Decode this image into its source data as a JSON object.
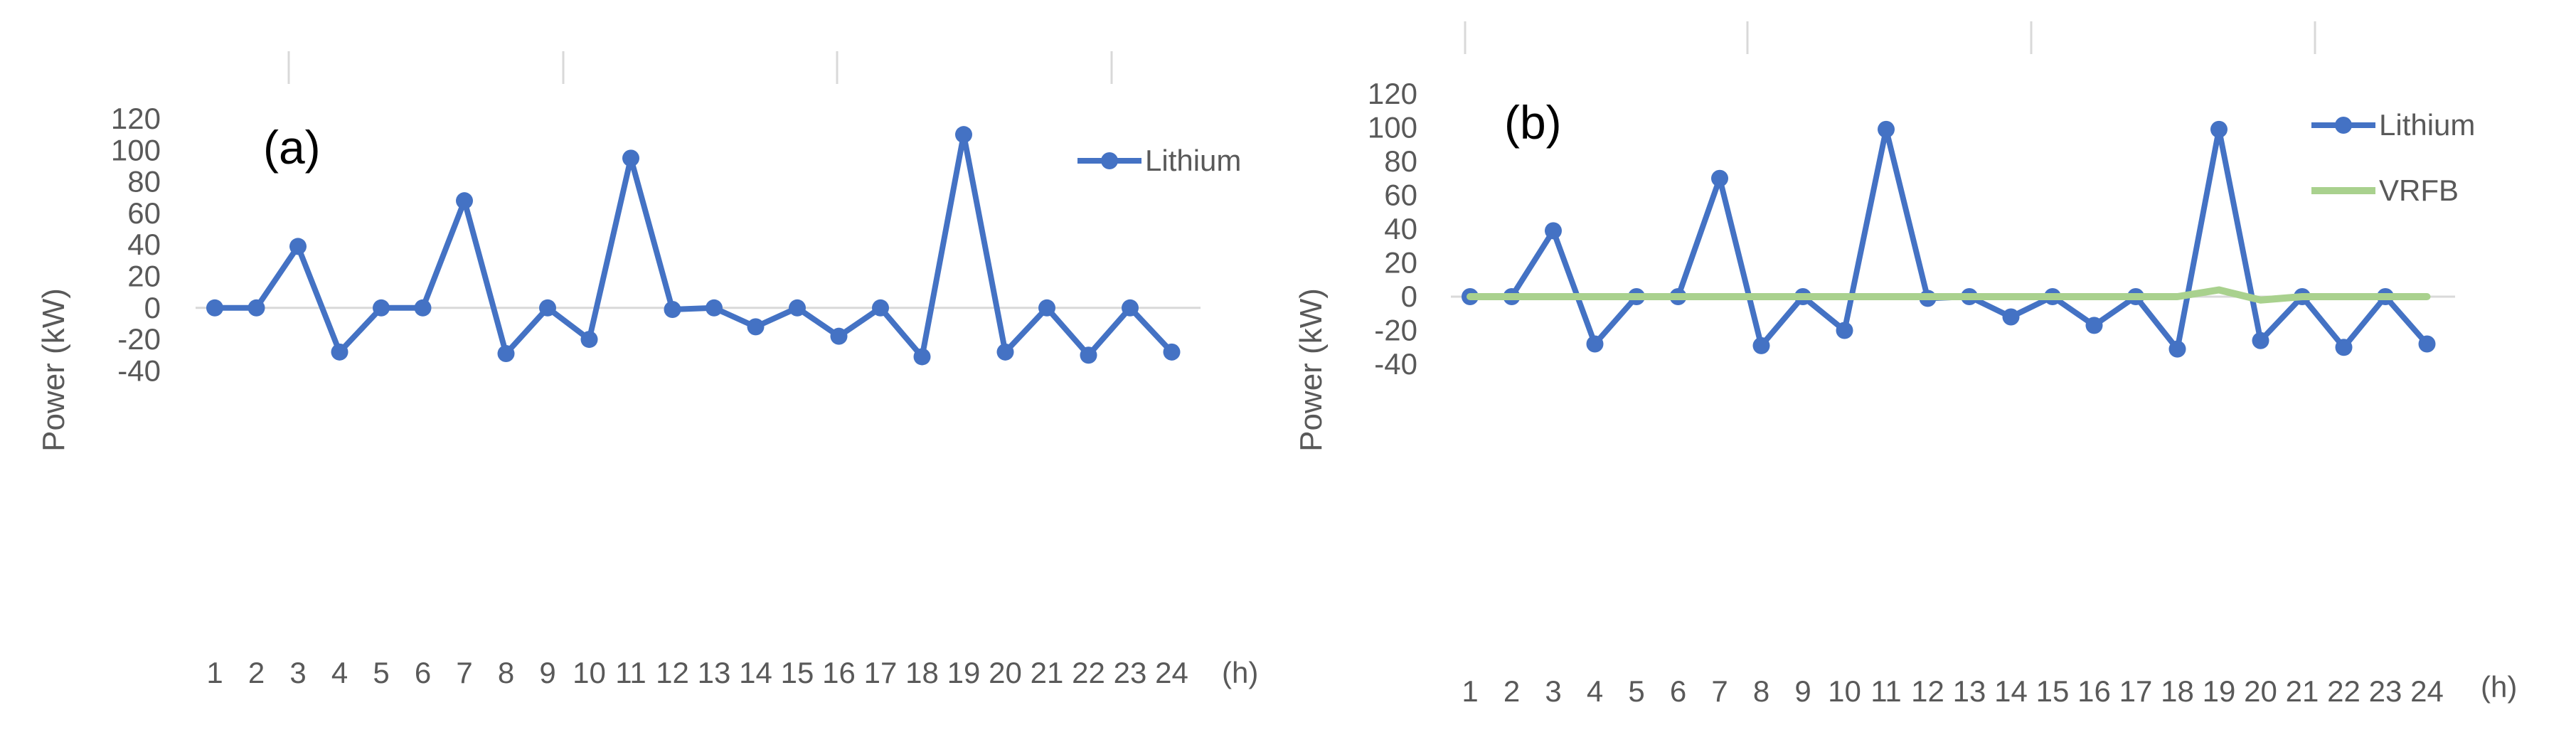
{
  "chart_data": [
    {
      "type": "line",
      "panel_label": "(a)",
      "ylabel": "Power (kW)",
      "xlabel_unit": "(h)",
      "categories": [
        "1",
        "2",
        "3",
        "4",
        "5",
        "6",
        "7",
        "8",
        "9",
        "10",
        "11",
        "12",
        "13",
        "14",
        "15",
        "16",
        "17",
        "18",
        "19",
        "20",
        "21",
        "22",
        "23",
        "24"
      ],
      "ylim": [
        -40,
        120
      ],
      "yticks": [
        "120",
        "100",
        "80",
        "60",
        "40",
        "20",
        "0",
        "-20",
        "-40"
      ],
      "legend_position": "top-right",
      "grid": false,
      "series": [
        {
          "name": "Lithium",
          "color": "#4472C4",
          "marker": "circle",
          "values": [
            0,
            0,
            39,
            -28,
            0,
            0,
            68,
            -29,
            0,
            -20,
            95,
            -1,
            0,
            -12,
            0,
            -18,
            0,
            -31,
            110,
            -28,
            0,
            -30,
            0,
            -28
          ]
        }
      ]
    },
    {
      "type": "line",
      "panel_label": "(b)",
      "ylabel": "Power (kW)",
      "xlabel_unit": "(h)",
      "categories": [
        "1",
        "2",
        "3",
        "4",
        "5",
        "6",
        "7",
        "8",
        "9",
        "10",
        "11",
        "12",
        "13",
        "14",
        "15",
        "16",
        "17",
        "18",
        "19",
        "20",
        "21",
        "22",
        "23",
        "24"
      ],
      "ylim": [
        -40,
        120
      ],
      "yticks": [
        "120",
        "100",
        "80",
        "60",
        "40",
        "20",
        "0",
        "-20",
        "-40"
      ],
      "legend_position": "top-right",
      "grid": false,
      "series": [
        {
          "name": "Lithium",
          "color": "#4472C4",
          "marker": "circle",
          "values": [
            0,
            0,
            39,
            -28,
            0,
            0,
            70,
            -29,
            0,
            -20,
            99,
            -1,
            0,
            -12,
            0,
            -17,
            0,
            -31,
            99,
            -26,
            0,
            -30,
            0,
            -28
          ]
        },
        {
          "name": "VRFB",
          "color": "#A9D18E",
          "marker": "none",
          "values": [
            0,
            0,
            0,
            0,
            0,
            0,
            0,
            0,
            0,
            0,
            0,
            0,
            0,
            0,
            0,
            0,
            0,
            0,
            4,
            -2,
            0,
            0,
            0,
            0
          ]
        }
      ]
    }
  ]
}
